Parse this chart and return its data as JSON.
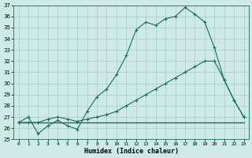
{
  "xlabel": "Humidex (Indice chaleur)",
  "bg_color": "#ceeae6",
  "grid_color": "#a8ccc8",
  "line_color": "#1a6b5a",
  "xlim": [
    -0.5,
    23.5
  ],
  "ylim": [
    25,
    37
  ],
  "xticks": [
    0,
    1,
    2,
    3,
    4,
    5,
    6,
    7,
    8,
    9,
    10,
    11,
    12,
    13,
    14,
    15,
    16,
    17,
    18,
    19,
    20,
    21,
    22,
    23
  ],
  "yticks": [
    25,
    26,
    27,
    28,
    29,
    30,
    31,
    32,
    33,
    34,
    35,
    36,
    37
  ],
  "series1": [
    26.5,
    27.0,
    25.5,
    26.2,
    26.7,
    26.2,
    25.9,
    27.5,
    28.8,
    29.5,
    30.8,
    32.5,
    34.8,
    35.5,
    35.2,
    35.8,
    36.0,
    36.8,
    36.2,
    35.5,
    33.2,
    30.3,
    28.5,
    27.0
  ],
  "series2": [
    26.5,
    26.5,
    26.5,
    26.8,
    27.0,
    26.8,
    26.6,
    26.8,
    27.0,
    27.2,
    27.5,
    28.0,
    28.5,
    29.0,
    29.5,
    30.0,
    30.5,
    31.0,
    31.5,
    32.0,
    32.0,
    30.3,
    28.5,
    27.0
  ],
  "series3": [
    26.5,
    26.5,
    26.5,
    26.5,
    26.5,
    26.5,
    26.5,
    26.5,
    26.5,
    26.5,
    26.5,
    26.5,
    26.5,
    26.5,
    26.5,
    26.5,
    26.5,
    26.5,
    26.5,
    26.5,
    26.5,
    26.5,
    26.5,
    26.5
  ]
}
